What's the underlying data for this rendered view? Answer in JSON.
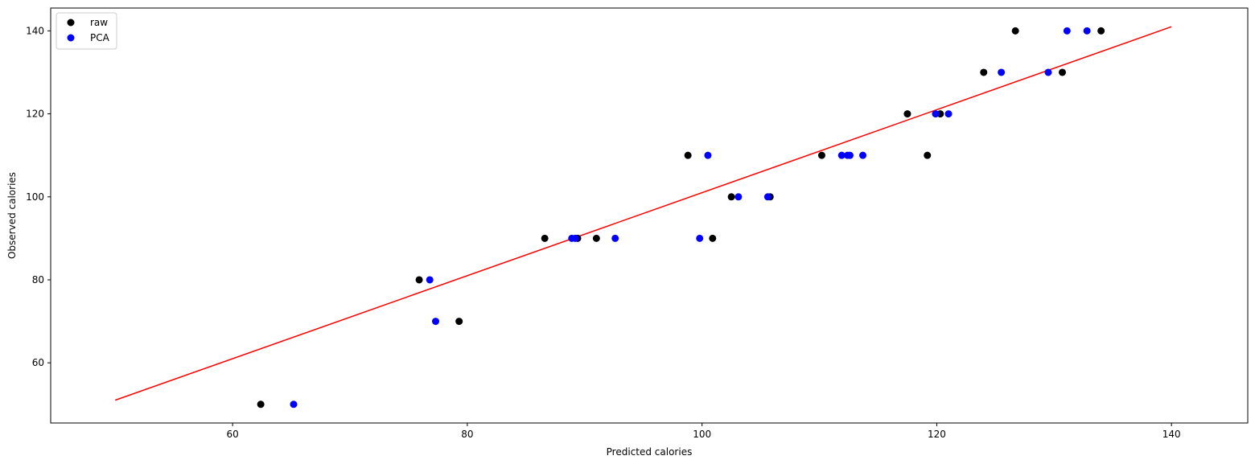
{
  "chart_data": {
    "type": "scatter",
    "xlabel": "Predicted calories",
    "ylabel": "Observed calories",
    "xlim": [
      44.5,
      146.5
    ],
    "ylim": [
      45.5,
      145.5
    ],
    "xticks": [
      60,
      80,
      100,
      120,
      140
    ],
    "yticks": [
      60,
      80,
      100,
      120,
      140
    ],
    "grid": false,
    "legend_position": "top-left",
    "series": [
      {
        "name": "raw",
        "color": "#000000",
        "points": [
          [
            62.4,
            50
          ],
          [
            75.9,
            80
          ],
          [
            79.3,
            70
          ],
          [
            86.6,
            90
          ],
          [
            89.4,
            90
          ],
          [
            91.0,
            90
          ],
          [
            98.8,
            110
          ],
          [
            100.9,
            90
          ],
          [
            102.5,
            100
          ],
          [
            105.8,
            100
          ],
          [
            110.2,
            110
          ],
          [
            117.5,
            120
          ],
          [
            119.2,
            110
          ],
          [
            120.3,
            120
          ],
          [
            124.0,
            130
          ],
          [
            126.7,
            140
          ],
          [
            130.7,
            130
          ],
          [
            134.0,
            140
          ]
        ]
      },
      {
        "name": "PCA",
        "color": "#0000ff",
        "points": [
          [
            65.2,
            50
          ],
          [
            76.8,
            80
          ],
          [
            77.3,
            70
          ],
          [
            88.9,
            90
          ],
          [
            89.2,
            90
          ],
          [
            92.6,
            90
          ],
          [
            99.8,
            90
          ],
          [
            100.5,
            110
          ],
          [
            103.1,
            100
          ],
          [
            105.6,
            100
          ],
          [
            111.9,
            110
          ],
          [
            112.4,
            110
          ],
          [
            112.6,
            110
          ],
          [
            113.7,
            110
          ],
          [
            119.9,
            120
          ],
          [
            121.0,
            120
          ],
          [
            125.5,
            130
          ],
          [
            129.5,
            130
          ],
          [
            131.1,
            140
          ],
          [
            132.8,
            140
          ]
        ]
      }
    ],
    "fit_line": {
      "color": "#ff0000",
      "points": [
        [
          50,
          51
        ],
        [
          140,
          141
        ]
      ]
    }
  }
}
